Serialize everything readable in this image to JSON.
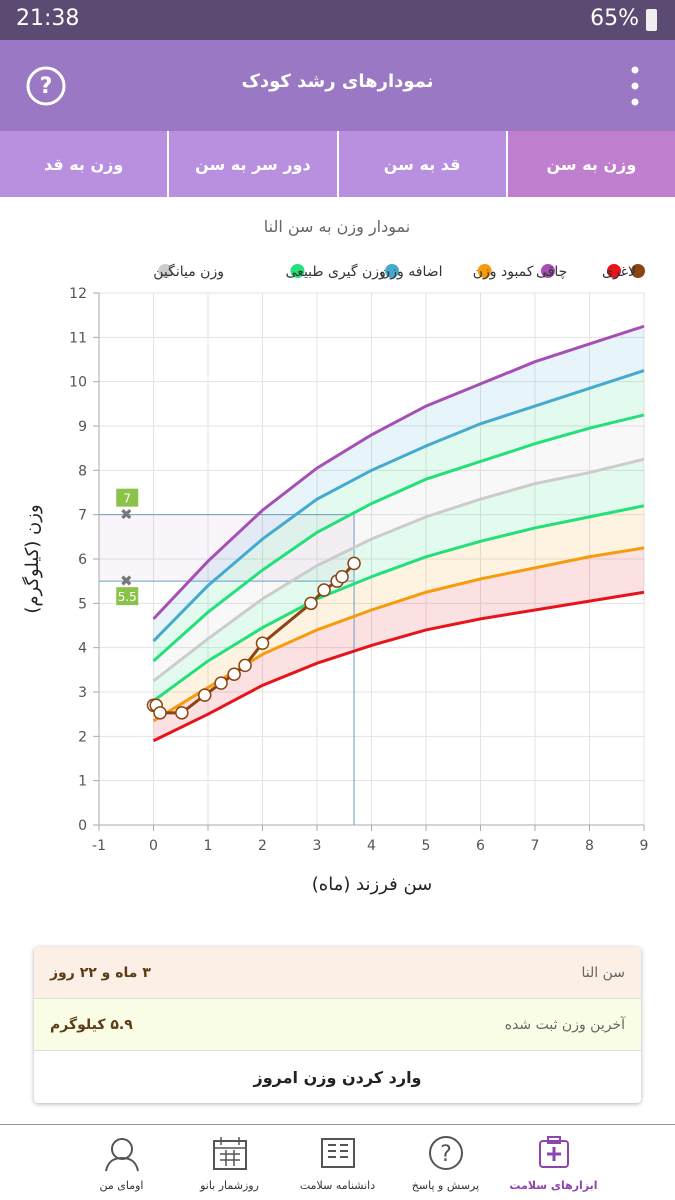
{
  "status_bar": {
    "time": "21:38",
    "battery": "65%"
  },
  "header": {
    "title": "نمودارهای رشد کودک"
  },
  "tabs": [
    "وزن به سن",
    "قد به سن",
    "دور سر به سن",
    "وزن به قد"
  ],
  "chart_data": {
    "type": "line",
    "title": "نمودار وزن به سن النا",
    "x_label": "سن فرزند (ماه)",
    "y_label": "وزن (کیلوگرم)",
    "xlim": [
      -1,
      9
    ],
    "xticks": [
      -1,
      0,
      1,
      2,
      3,
      4,
      5,
      6,
      7,
      8,
      9
    ],
    "ylim": [
      0,
      12
    ],
    "yticks": [
      0,
      1,
      2,
      3,
      4,
      5,
      6,
      7,
      8,
      9,
      10,
      11,
      12
    ],
    "grid": true,
    "x": [
      0,
      1,
      2,
      3,
      4,
      5,
      6,
      7,
      8,
      9
    ],
    "series": [
      {
        "color": "#8b4513",
        "x": [
          0,
          0.05,
          0.12,
          0.52,
          0.94,
          1.24,
          1.48,
          1.68,
          2.0,
          2.89,
          3.13,
          3.37,
          3.46,
          3.68
        ],
        "values": [
          2.7,
          2.7,
          2.53,
          2.53,
          2.93,
          3.2,
          3.4,
          3.6,
          4.1,
          5.0,
          5.3,
          5.5,
          5.6,
          5.9
        ]
      },
      {
        "name": "لاغری",
        "color": "#e8141c",
        "values": [
          1.9,
          2.5,
          3.15,
          3.65,
          4.05,
          4.4,
          4.65,
          4.85,
          5.05,
          5.25
        ]
      },
      {
        "name": "چاقی",
        "color": "#a64fb5",
        "values": [
          4.65,
          5.95,
          7.1,
          8.05,
          8.8,
          9.45,
          9.95,
          10.45,
          10.85,
          11.25
        ]
      },
      {
        "name": "کمبود وزن",
        "color": "#f59b0c",
        "values": [
          2.35,
          3.1,
          3.85,
          4.4,
          4.85,
          5.25,
          5.55,
          5.8,
          6.05,
          6.25
        ]
      },
      {
        "name": "اضافه وزن",
        "color": "#45a9d0",
        "values": [
          4.15,
          5.4,
          6.45,
          7.35,
          8.0,
          8.55,
          9.05,
          9.45,
          9.85,
          10.25
        ]
      },
      {
        "name": "وزن گیری طبیعی",
        "color": "#22e07a",
        "values": [
          2.8,
          3.7,
          4.45,
          5.1,
          5.6,
          6.05,
          6.4,
          6.7,
          6.95,
          7.2
        ]
      },
      {
        "color": "#22e07a",
        "values": [
          3.7,
          4.8,
          5.75,
          6.6,
          7.25,
          7.8,
          8.2,
          8.6,
          8.95,
          9.25
        ]
      },
      {
        "name": "وزن میانگین",
        "color": "#cccccc",
        "values": [
          3.25,
          4.2,
          5.1,
          5.85,
          6.45,
          6.95,
          7.35,
          7.7,
          7.95,
          8.25
        ]
      }
    ],
    "annotations": [
      7,
      5.5
    ]
  },
  "info_card": {
    "rows": [
      [
        "سن النا",
        "۳ ماه و ۲۲ روز"
      ],
      [
        "آخرین وزن ثبت شده",
        "۵.۹ کیلوگرم"
      ]
    ],
    "button": "وارد کردن وزن امروز"
  },
  "bottom_nav": [
    "ابزارهای سلامت",
    "پرسش و پاسخ",
    "دانشنامه سلامت",
    "روزشمار بانو",
    "اومای من"
  ]
}
